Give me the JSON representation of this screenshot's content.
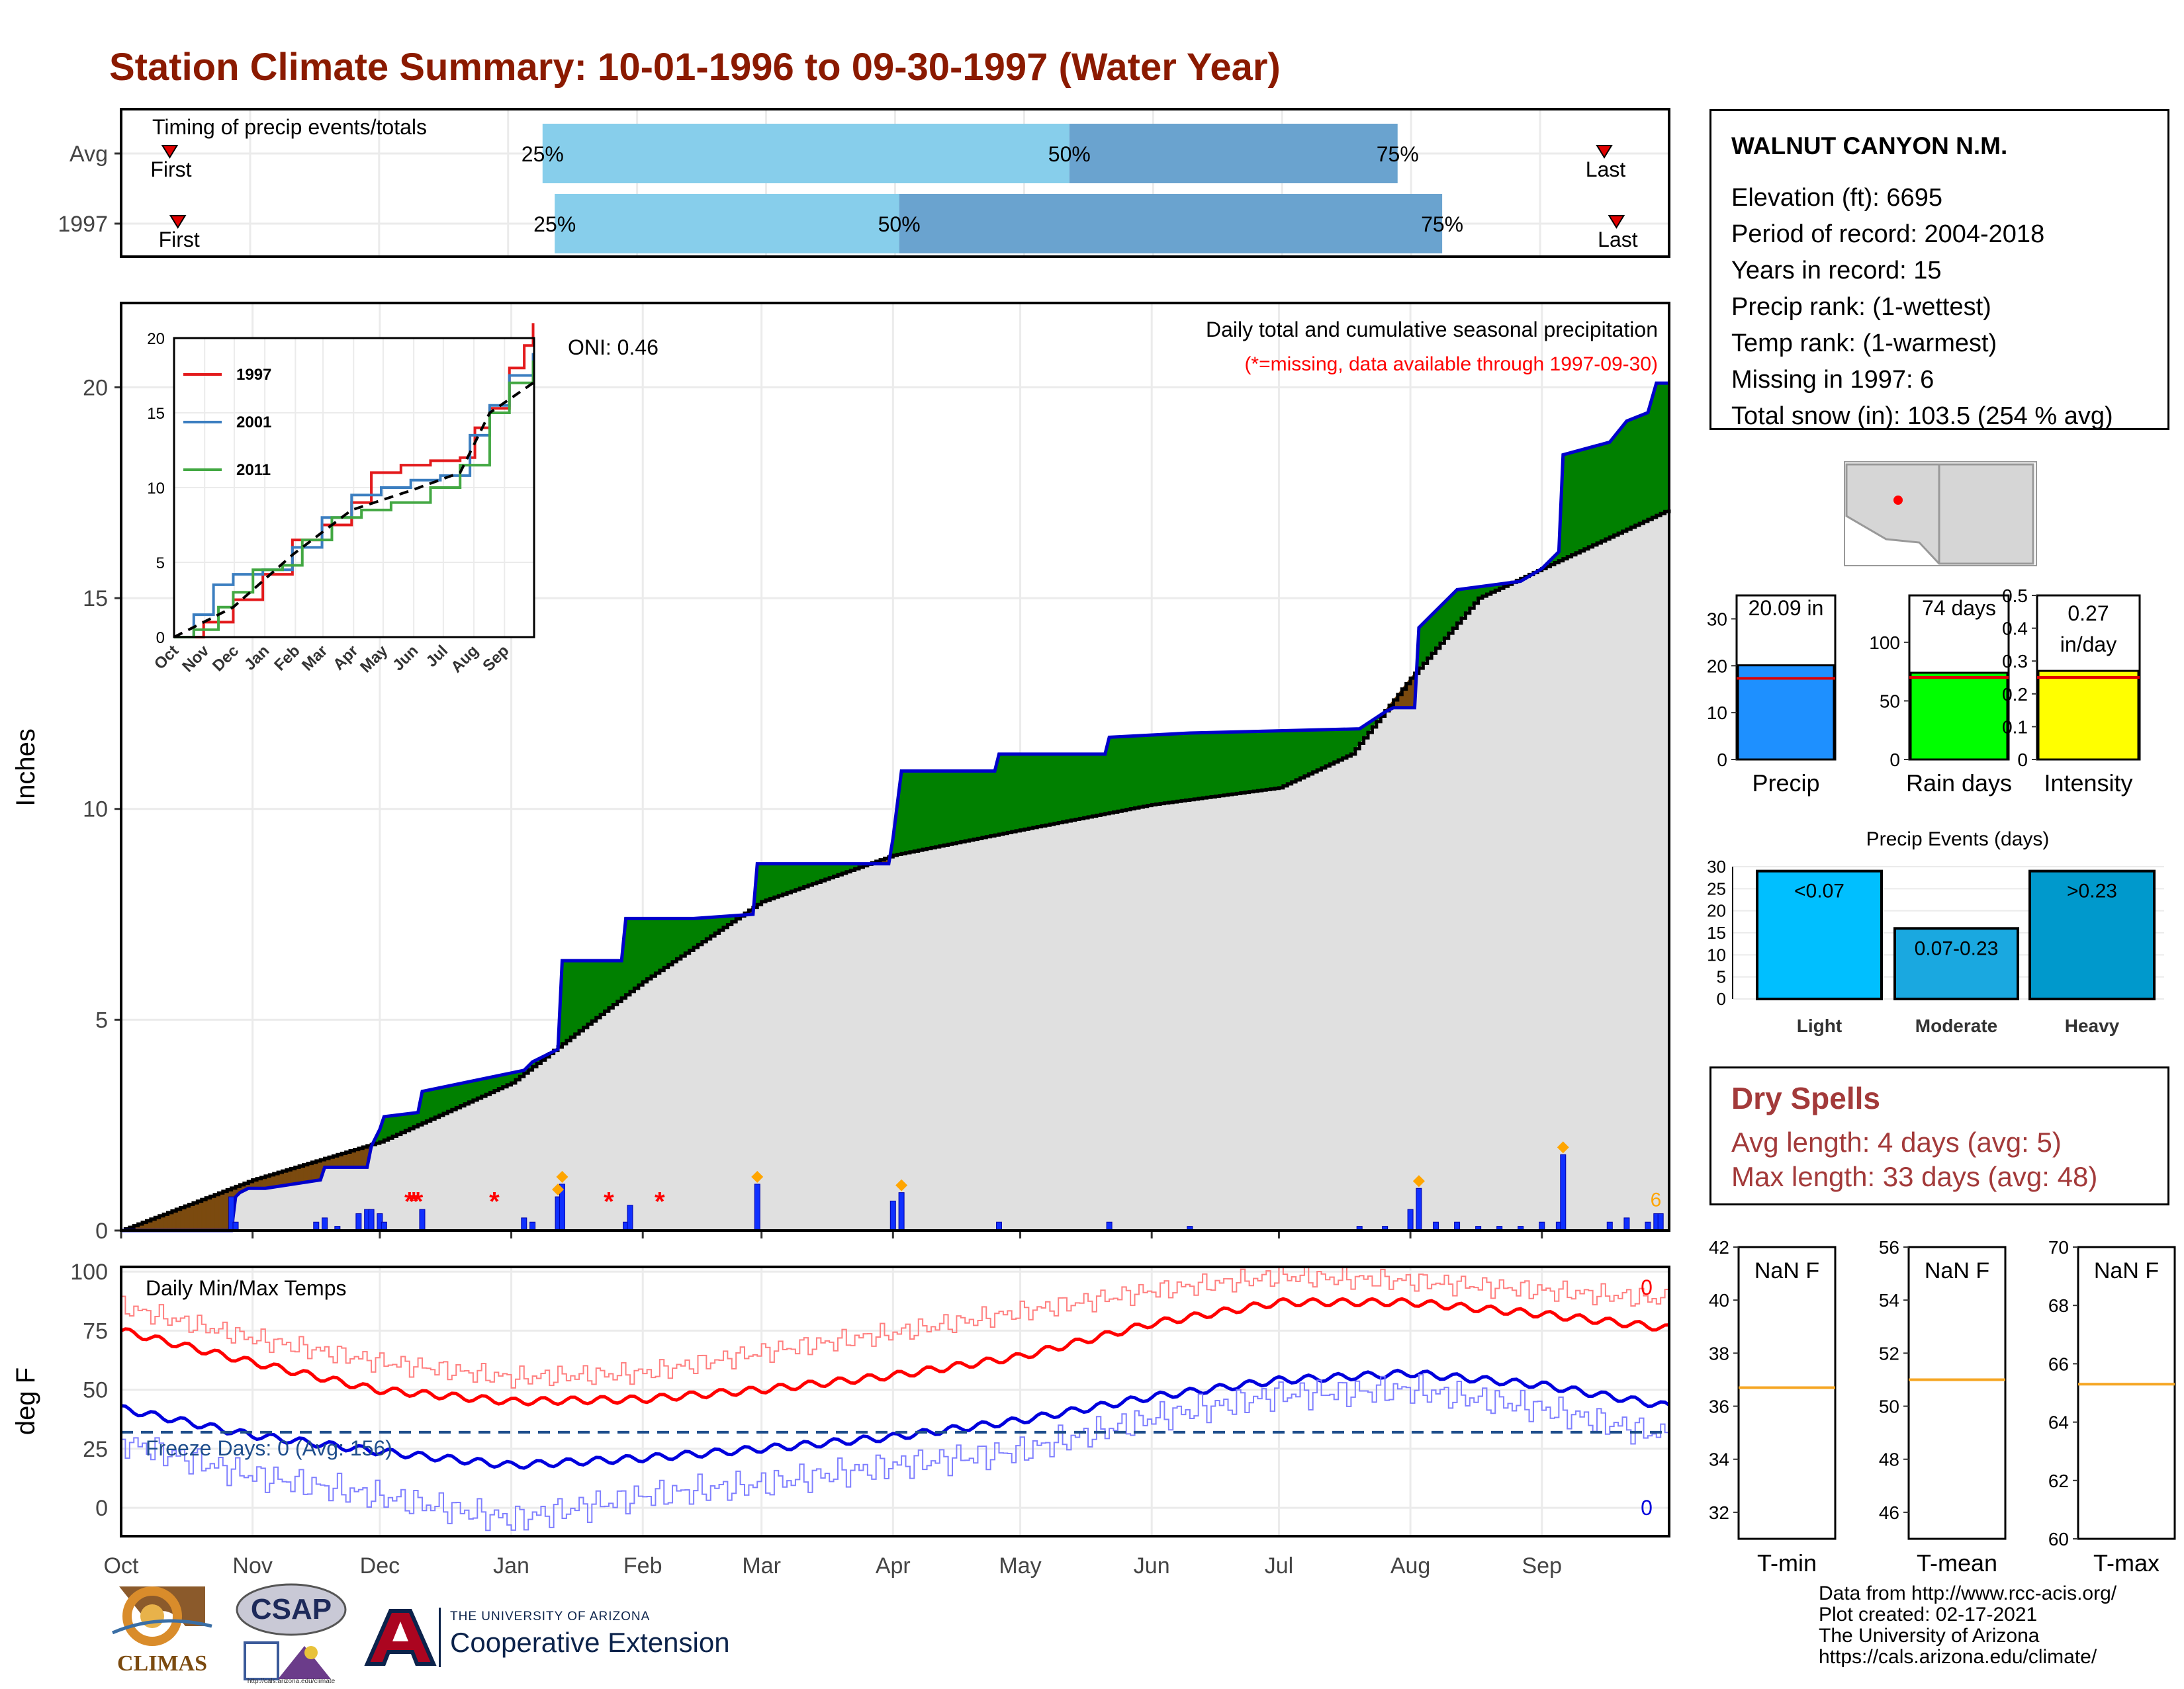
{
  "title": "Station Climate Summary: 10-01-1996 to 09-30-1997 (Water Year)",
  "colors": {
    "title": "#8b1a00",
    "year_1997": "#e31a1c",
    "year_2001": "#3b7ec0",
    "year_2011": "#43a843",
    "cum_obs_line": "#0000cc",
    "surplus": "#008000",
    "deficit": "#7b4a0f",
    "avg_area": "#e0e0e0",
    "timing_light": "#87ceeb",
    "timing_dark": "#6aa3cf",
    "missing_star": "#ff0000",
    "max_temp": "#ff0000",
    "min_temp": "#0000dd",
    "freeze_line": "#1f4e8c",
    "events_light": "#00bfff",
    "events_mod": "#1aa8e0",
    "events_heavy": "#0099cc",
    "dry_spells": "#a33a3a",
    "ref_orange": "#f5a623"
  },
  "station": {
    "name": "WALNUT CANYON N.M.",
    "lines": [
      "Elevation (ft): 6695",
      "Period of record: 2004-2018",
      "Years in record: 15",
      "Precip rank:  (1-wettest)",
      "Temp rank:  (1-warmest)",
      "Missing in 1997: 6",
      "Total snow (in): 103.5 (254 % avg)"
    ]
  },
  "dry_spells": {
    "heading": "Dry Spells",
    "avg": "Avg length: 4 days (avg: 5)",
    "max": "Max length: 33 days (avg: 48)"
  },
  "credits": [
    "Data from http://www.rcc-acis.org/",
    "Plot created: 02-17-2021",
    "The University of Arizona",
    "https://cals.arizona.edu/climate/"
  ],
  "logos": {
    "climas": "CLIMAS",
    "csap": "CSAP",
    "csap_url": "http://cals.arizona.edu/climate",
    "ua_small": "THE UNIVERSITY OF ARIZONA",
    "ua_big": "Cooperative Extension"
  },
  "chart_data": [
    {
      "id": "timing",
      "type": "bar",
      "title": "Timing of precip events/totals",
      "rows": [
        "Avg",
        "1997"
      ],
      "markers": {
        "Avg": {
          "first": 12,
          "p25": 104,
          "p50": 234,
          "p75": 315,
          "last": 366
        },
        "1997": {
          "first": 14,
          "p25": 107,
          "p50": 192,
          "p75": 326,
          "last": 369
        }
      },
      "labels": {
        "first": "First",
        "last": "Last",
        "p25": "25%",
        "p50": "50%",
        "p75": "75%"
      },
      "x_range_days": [
        0,
        382
      ]
    },
    {
      "id": "cumulative_precip",
      "type": "area",
      "title": "Daily total and cumulative seasonal precipitation",
      "subtitle": "(*=missing, data available through 1997-09-30)",
      "annotation": "ONI: 0.46",
      "ylabel": "Inches",
      "ylim": [
        0,
        22
      ],
      "yticks": [
        0,
        5,
        10,
        15,
        20
      ],
      "x_ticks": [
        "Oct",
        "Nov",
        "Dec",
        "Jan",
        "Feb",
        "Mar",
        "Apr",
        "May",
        "Jun",
        "Jul",
        "Aug",
        "Sep"
      ],
      "x_tick_days": [
        0,
        31,
        61,
        92,
        123,
        151,
        182,
        212,
        243,
        273,
        304,
        335
      ],
      "observed_cumulative": [
        {
          "day": 0,
          "value": 0
        },
        {
          "day": 26,
          "value": 0.0
        },
        {
          "day": 27,
          "value": 0.8
        },
        {
          "day": 28,
          "value": 0.9
        },
        {
          "day": 30,
          "value": 1.0
        },
        {
          "day": 34,
          "value": 1.0
        },
        {
          "day": 47,
          "value": 1.2
        },
        {
          "day": 48,
          "value": 1.5
        },
        {
          "day": 58,
          "value": 1.5
        },
        {
          "day": 59,
          "value": 2.0
        },
        {
          "day": 61,
          "value": 2.4
        },
        {
          "day": 62,
          "value": 2.7
        },
        {
          "day": 70,
          "value": 2.8
        },
        {
          "day": 71,
          "value": 3.3
        },
        {
          "day": 95,
          "value": 3.8
        },
        {
          "day": 97,
          "value": 4.0
        },
        {
          "day": 103,
          "value": 4.3
        },
        {
          "day": 104,
          "value": 6.4
        },
        {
          "day": 118,
          "value": 6.4
        },
        {
          "day": 119,
          "value": 7.4
        },
        {
          "day": 135,
          "value": 7.4
        },
        {
          "day": 149,
          "value": 7.5
        },
        {
          "day": 150,
          "value": 8.7
        },
        {
          "day": 181,
          "value": 8.7
        },
        {
          "day": 182,
          "value": 9.3
        },
        {
          "day": 184,
          "value": 10.9
        },
        {
          "day": 206,
          "value": 10.9
        },
        {
          "day": 207,
          "value": 11.3
        },
        {
          "day": 232,
          "value": 11.3
        },
        {
          "day": 233,
          "value": 11.7
        },
        {
          "day": 252,
          "value": 11.8
        },
        {
          "day": 292,
          "value": 11.9
        },
        {
          "day": 298,
          "value": 12.3
        },
        {
          "day": 300,
          "value": 12.4
        },
        {
          "day": 305,
          "value": 12.4
        },
        {
          "day": 306,
          "value": 14.3
        },
        {
          "day": 315,
          "value": 15.2
        },
        {
          "day": 330,
          "value": 15.4
        },
        {
          "day": 335,
          "value": 15.7
        },
        {
          "day": 339,
          "value": 16.1
        },
        {
          "day": 340,
          "value": 18.4
        },
        {
          "day": 351,
          "value": 18.7
        },
        {
          "day": 355,
          "value": 19.2
        },
        {
          "day": 360,
          "value": 19.4
        },
        {
          "day": 362,
          "value": 20.1
        },
        {
          "day": 365,
          "value": 20.1
        }
      ],
      "average_cumulative": [
        {
          "day": 0,
          "value": 0
        },
        {
          "day": 31,
          "value": 1.2
        },
        {
          "day": 61,
          "value": 2.1
        },
        {
          "day": 92,
          "value": 3.5
        },
        {
          "day": 123,
          "value": 5.9
        },
        {
          "day": 151,
          "value": 7.8
        },
        {
          "day": 182,
          "value": 8.9
        },
        {
          "day": 212,
          "value": 9.5
        },
        {
          "day": 243,
          "value": 10.1
        },
        {
          "day": 273,
          "value": 10.5
        },
        {
          "day": 290,
          "value": 11.3
        },
        {
          "day": 304,
          "value": 13.1
        },
        {
          "day": 320,
          "value": 15.0
        },
        {
          "day": 335,
          "value": 15.7
        },
        {
          "day": 350,
          "value": 16.4
        },
        {
          "day": 365,
          "value": 17.1
        }
      ],
      "daily_bars": [
        {
          "day": 26,
          "value": 0.8
        },
        {
          "day": 27,
          "value": 0.2
        },
        {
          "day": 46,
          "value": 0.2
        },
        {
          "day": 48,
          "value": 0.3
        },
        {
          "day": 51,
          "value": 0.1
        },
        {
          "day": 56,
          "value": 0.4
        },
        {
          "day": 58,
          "value": 0.5
        },
        {
          "day": 59,
          "value": 0.5
        },
        {
          "day": 61,
          "value": 0.4
        },
        {
          "day": 62,
          "value": 0.2
        },
        {
          "day": 71,
          "value": 0.5
        },
        {
          "day": 95,
          "value": 0.3
        },
        {
          "day": 97,
          "value": 0.2
        },
        {
          "day": 103,
          "value": 0.8
        },
        {
          "day": 104,
          "value": 1.1
        },
        {
          "day": 119,
          "value": 0.2
        },
        {
          "day": 120,
          "value": 0.6
        },
        {
          "day": 150,
          "value": 1.1
        },
        {
          "day": 182,
          "value": 0.7
        },
        {
          "day": 184,
          "value": 0.9
        },
        {
          "day": 207,
          "value": 0.2
        },
        {
          "day": 233,
          "value": 0.2
        },
        {
          "day": 252,
          "value": 0.1
        },
        {
          "day": 292,
          "value": 0.1
        },
        {
          "day": 298,
          "value": 0.1
        },
        {
          "day": 304,
          "value": 0.5
        },
        {
          "day": 306,
          "value": 1.0
        },
        {
          "day": 310,
          "value": 0.2
        },
        {
          "day": 315,
          "value": 0.2
        },
        {
          "day": 320,
          "value": 0.1
        },
        {
          "day": 325,
          "value": 0.1
        },
        {
          "day": 330,
          "value": 0.1
        },
        {
          "day": 335,
          "value": 0.2
        },
        {
          "day": 339,
          "value": 0.2
        },
        {
          "day": 340,
          "value": 1.8
        },
        {
          "day": 351,
          "value": 0.2
        },
        {
          "day": 355,
          "value": 0.3
        },
        {
          "day": 360,
          "value": 0.2
        },
        {
          "day": 362,
          "value": 0.4
        },
        {
          "day": 363,
          "value": 0.4
        }
      ],
      "missing_days": [
        68,
        69,
        70,
        88,
        115,
        127
      ],
      "heavy_event_days": [
        103,
        104,
        150,
        184,
        306,
        340
      ],
      "missing_count_label": "6"
    },
    {
      "id": "inset_top_years",
      "type": "line",
      "ylim": [
        0,
        20
      ],
      "yticks": [
        0,
        5,
        10,
        15,
        20
      ],
      "x_ticks": [
        "Oct",
        "Nov",
        "Dec",
        "Jan",
        "Feb",
        "Mar",
        "Apr",
        "May",
        "Jun",
        "Jul",
        "Aug",
        "Sep"
      ],
      "series": [
        {
          "name": "1997",
          "x": [
            0,
            30,
            60,
            90,
            120,
            150,
            180,
            200,
            230,
            260,
            290,
            305,
            320,
            340,
            355,
            364
          ],
          "values": [
            0,
            1.0,
            2.5,
            4.2,
            6.5,
            7.5,
            9.0,
            11.0,
            11.5,
            11.8,
            12.0,
            14.0,
            15.3,
            18.0,
            19.5,
            21.0
          ]
        },
        {
          "name": "2001",
          "x": [
            0,
            20,
            40,
            60,
            90,
            120,
            150,
            180,
            210,
            240,
            270,
            300,
            320,
            340,
            364
          ],
          "values": [
            0,
            1.5,
            3.5,
            4.2,
            4.5,
            6.0,
            8.0,
            9.5,
            10.0,
            10.5,
            10.8,
            13.5,
            15.5,
            17.5,
            19.0
          ]
        },
        {
          "name": "2011",
          "x": [
            0,
            20,
            45,
            60,
            80,
            110,
            130,
            160,
            190,
            220,
            260,
            290,
            320,
            340,
            364
          ],
          "values": [
            0,
            0.5,
            2.0,
            3.0,
            4.5,
            4.8,
            6.5,
            8.0,
            8.5,
            9.0,
            10.0,
            11.5,
            15.0,
            17.0,
            18.5
          ]
        },
        {
          "name": "",
          "x": [
            0,
            60,
            120,
            180,
            240,
            290,
            320,
            364
          ],
          "values": [
            0,
            2.0,
            5.5,
            8.5,
            9.8,
            11.0,
            15.0,
            17.0
          ]
        }
      ]
    },
    {
      "id": "summary_bars",
      "type": "bar",
      "panels": [
        {
          "name": "Precip",
          "value": 20.09,
          "label": "20.09 in",
          "avg": 17.3,
          "ylim": [
            0,
            35
          ],
          "yticks": [
            0,
            10,
            20,
            30
          ]
        },
        {
          "name": "Rain days",
          "value": 74,
          "label": "74 days",
          "avg": 70,
          "ylim": [
            0,
            140
          ],
          "yticks": [
            0,
            50,
            100
          ]
        },
        {
          "name": "Intensity",
          "value": 0.27,
          "label": "0.27 in/day",
          "avg": 0.25,
          "ylim": [
            0,
            0.5
          ],
          "yticks": [
            0.0,
            0.1,
            0.2,
            0.3,
            0.4,
            0.5
          ]
        }
      ]
    },
    {
      "id": "precip_events",
      "type": "bar",
      "title": "Precip Events (days)",
      "categories": [
        "Light",
        "Moderate",
        "Heavy"
      ],
      "bar_labels": [
        "<0.07",
        "0.07-0.23",
        ">0.23"
      ],
      "values": [
        29,
        16,
        29
      ],
      "ylim": [
        0,
        30
      ],
      "yticks": [
        0,
        5,
        10,
        15,
        20,
        25,
        30
      ]
    },
    {
      "id": "daily_temps",
      "type": "line",
      "title": "Daily Min/Max Temps",
      "ylabel": "deg F",
      "ylim": [
        -12,
        102
      ],
      "yticks": [
        0,
        25,
        50,
        75,
        100
      ],
      "x_ticks": [
        "Oct",
        "Nov",
        "Dec",
        "Jan",
        "Feb",
        "Mar",
        "Apr",
        "May",
        "Jun",
        "Jul",
        "Aug",
        "Sep"
      ],
      "freeze_line": 32,
      "freeze_label": "Freeze Days: 0 (Avg: 156)",
      "max_count_label": "0",
      "min_count_label": "0",
      "series": [
        {
          "name": "avg max",
          "x": [
            0,
            30,
            60,
            92,
            123,
            151,
            182,
            212,
            243,
            273,
            304,
            335,
            365
          ],
          "values": [
            75,
            62,
            50,
            45,
            46,
            50,
            56,
            64,
            78,
            87,
            87,
            82,
            76
          ]
        },
        {
          "name": "avg min",
          "x": [
            0,
            30,
            60,
            92,
            123,
            151,
            182,
            212,
            243,
            273,
            304,
            335,
            365
          ],
          "values": [
            42,
            31,
            24,
            18,
            21,
            25,
            30,
            37,
            47,
            54,
            57,
            52,
            43
          ]
        },
        {
          "name": "max",
          "x": [
            0,
            30,
            60,
            92,
            123,
            151,
            182,
            212,
            243,
            273,
            304,
            335,
            365
          ],
          "values": [
            85,
            72,
            62,
            55,
            57,
            66,
            74,
            83,
            92,
            98,
            96,
            92,
            88
          ]
        },
        {
          "name": "min",
          "x": [
            0,
            30,
            60,
            92,
            123,
            151,
            182,
            212,
            243,
            273,
            304,
            335,
            365
          ],
          "values": [
            28,
            14,
            5,
            -5,
            5,
            10,
            18,
            24,
            38,
            48,
            50,
            42,
            30
          ]
        }
      ]
    },
    {
      "id": "temp_summary",
      "type": "bar",
      "panels": [
        {
          "name": "T-min",
          "label": "NaN F",
          "avg": 36.7,
          "ylim": [
            31,
            42
          ],
          "yticks": [
            32,
            34,
            36,
            38,
            40,
            42
          ]
        },
        {
          "name": "T-mean",
          "label": "NaN F",
          "avg": 51.0,
          "ylim": [
            45,
            56
          ],
          "yticks": [
            46,
            48,
            50,
            52,
            54,
            56
          ]
        },
        {
          "name": "T-max",
          "label": "NaN F",
          "avg": 65.3,
          "ylim": [
            60,
            70
          ],
          "yticks": [
            60,
            62,
            64,
            66,
            68,
            70
          ]
        }
      ]
    }
  ]
}
